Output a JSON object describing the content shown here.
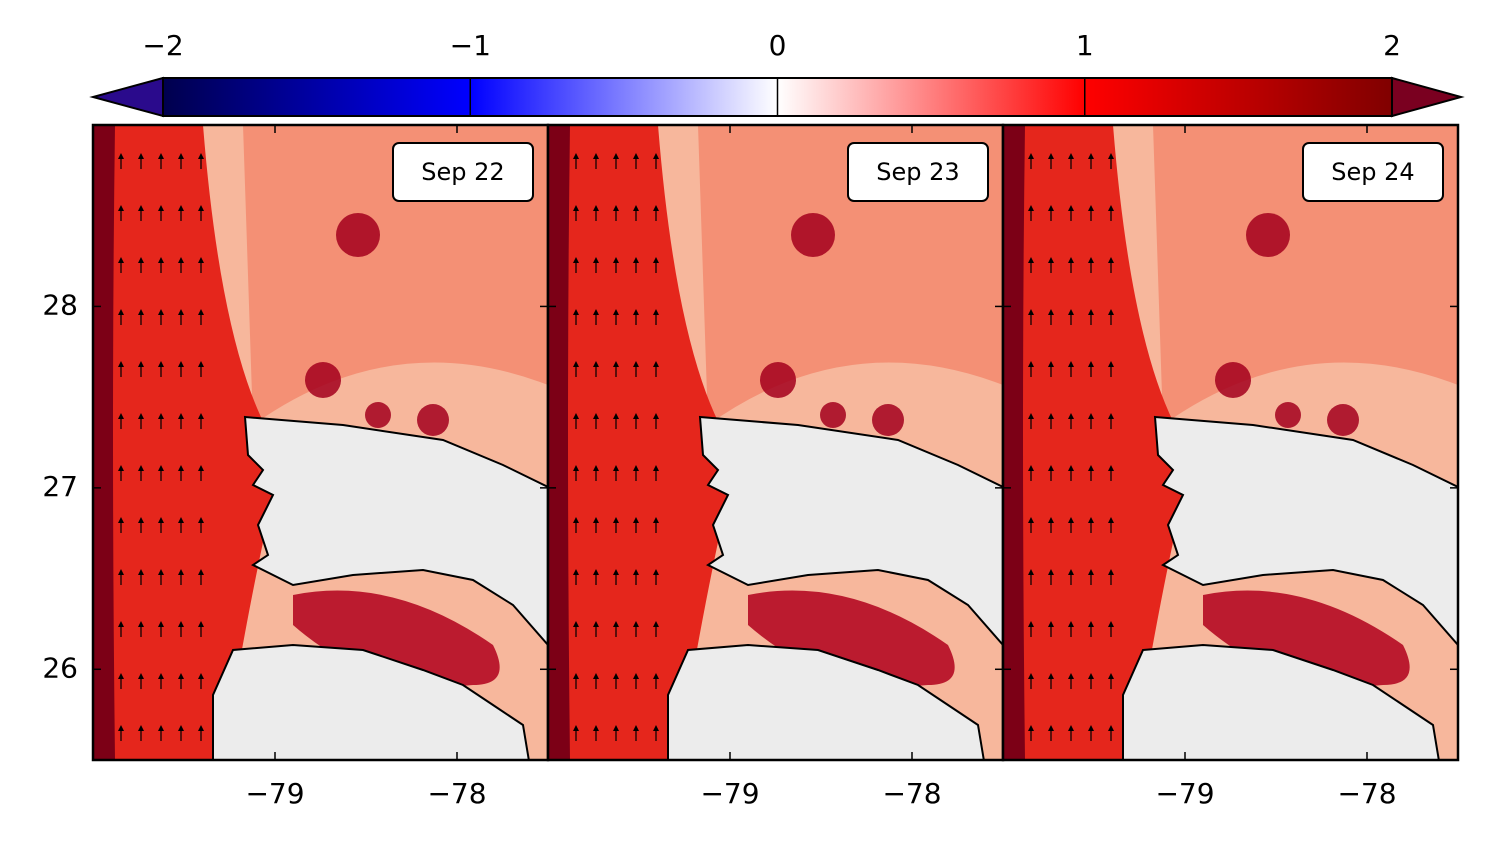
{
  "colorbar": {
    "lim": [
      -2,
      2
    ],
    "ticks": [
      {
        "value": -2,
        "label": "−2"
      },
      {
        "value": -1,
        "label": "−1"
      },
      0,
      1,
      2
    ],
    "colormap": [
      "#00004d",
      "#0000ff",
      "#ffffff",
      "#ff0000",
      "#800000"
    ],
    "under_color": "#2a0a8c",
    "over_color": "#7a0020"
  },
  "xlim": [
    -80,
    -77.5
  ],
  "xticks": [
    {
      "value": -79,
      "label": "−79"
    },
    {
      "value": -78,
      "label": "−78"
    }
  ],
  "ylim": [
    25.5,
    29
  ],
  "yticks": [
    26,
    27,
    28
  ],
  "panels": [
    {
      "label": "Sep 22"
    },
    {
      "label": "Sep 23"
    },
    {
      "label": "Sep 24"
    }
  ]
}
